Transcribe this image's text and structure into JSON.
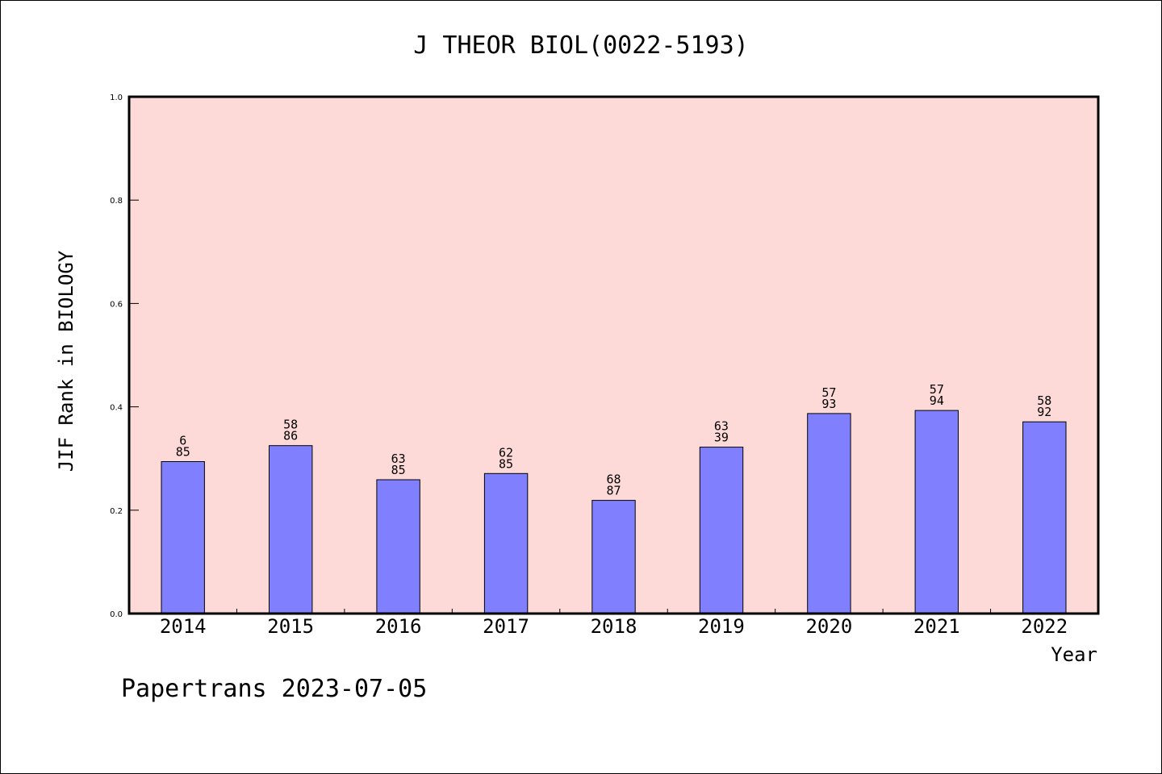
{
  "chart_data": {
    "type": "bar",
    "title": "J THEOR BIOL(0022-5193)",
    "xlabel": "Year",
    "ylabel": "JIF Rank in BIOLOGY",
    "ylim": [
      0,
      1.0
    ],
    "yticks": [
      "0.0",
      "0.2",
      "0.4",
      "0.6",
      "0.8",
      "1.0"
    ],
    "categories": [
      "2014",
      "2015",
      "2016",
      "2017",
      "2018",
      "2019",
      "2020",
      "2021",
      "2022"
    ],
    "values": [
      0.294,
      0.325,
      0.259,
      0.271,
      0.219,
      0.322,
      0.387,
      0.393,
      0.371
    ],
    "labels_top": [
      "6",
      "58",
      "63",
      "62",
      "68",
      "63",
      "57",
      "57",
      "58"
    ],
    "labels_bottom": [
      "85",
      "86",
      "85",
      "85",
      "87",
      "39",
      "93",
      "94",
      "92"
    ],
    "grid": false,
    "colors": {
      "bar": "#8080ff",
      "plot_bg": "#fddad7"
    }
  },
  "footer": "Papertrans 2023-07-05"
}
